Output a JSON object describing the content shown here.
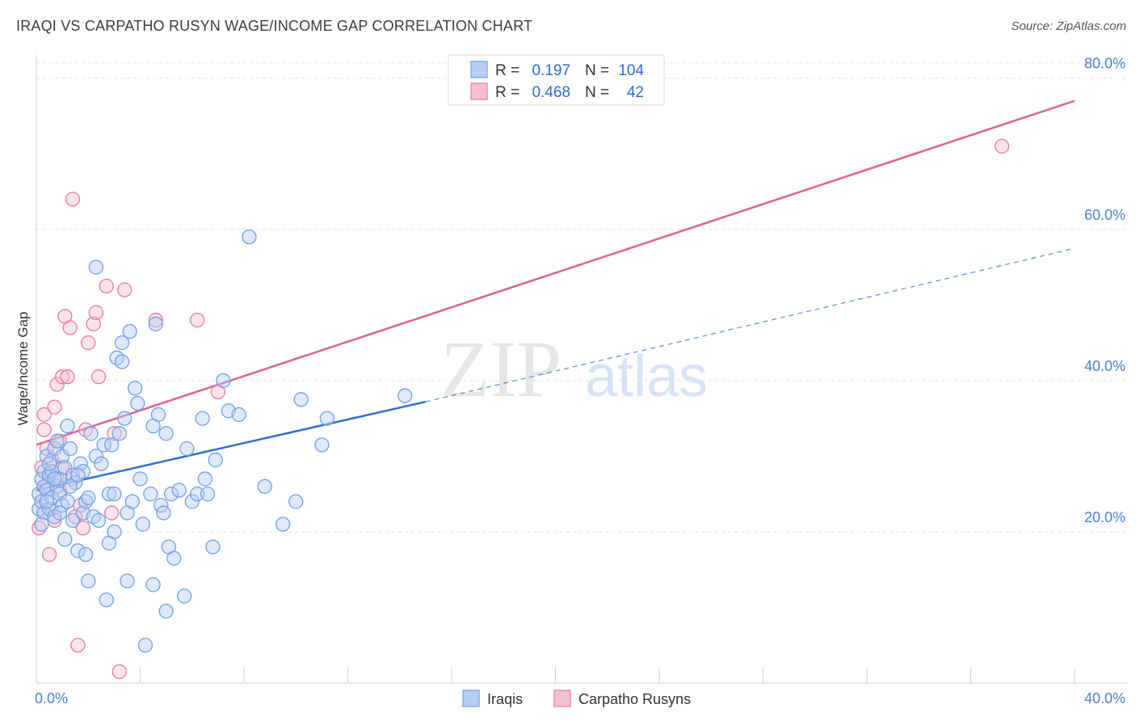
{
  "title": "IRAQI VS CARPATHO RUSYN WAGE/INCOME GAP CORRELATION CHART",
  "source": "Source: ZipAtlas.com",
  "watermark": {
    "zip": "ZIP",
    "atlas": "atlas"
  },
  "chart_data": {
    "type": "scatter",
    "title": "IRAQI VS CARPATHO RUSYN WAGE/INCOME GAP CORRELATION CHART",
    "xlabel": "",
    "ylabel": "Wage/Income Gap",
    "xlim": [
      0,
      40
    ],
    "ylim": [
      0,
      82
    ],
    "x_tick_labels": [
      "0.0%",
      "40.0%"
    ],
    "y_tick_values": [
      20,
      40,
      60,
      80
    ],
    "y_tick_labels": [
      "20.0%",
      "40.0%",
      "60.0%",
      "80.0%"
    ],
    "grid": true,
    "legend_position": "top-center",
    "stats": [
      {
        "name": "Iraqis",
        "r_label": "R =",
        "r": "0.197",
        "n_label": "N =",
        "n": "104",
        "color": "#6fa0e8",
        "fill": "#b7cff5"
      },
      {
        "name": "Carpatho Rusyns",
        "r_label": "R =",
        "r": "0.468",
        "n_label": "N =",
        "n": "42",
        "color": "#e87aa0",
        "fill": "#f7c0d2"
      }
    ],
    "series": [
      {
        "name": "Iraqis",
        "color": "#6fa0e8",
        "trend": {
          "x0": 0,
          "y0": 25.5,
          "x1": 15,
          "y1": 37.2,
          "dash_x1": 40,
          "dash_y1": 57.5,
          "color": "#2f6fd0"
        },
        "points": [
          [
            0.1,
            25
          ],
          [
            0.1,
            23
          ],
          [
            0.2,
            27
          ],
          [
            0.2,
            24
          ],
          [
            0.3,
            26
          ],
          [
            0.3,
            22.5
          ],
          [
            0.3,
            28
          ],
          [
            0.4,
            30
          ],
          [
            0.4,
            25.5
          ],
          [
            0.5,
            23
          ],
          [
            0.5,
            27.5
          ],
          [
            0.6,
            24.5
          ],
          [
            0.6,
            28
          ],
          [
            0.7,
            31
          ],
          [
            0.7,
            22
          ],
          [
            0.8,
            26
          ],
          [
            0.8,
            32
          ],
          [
            0.9,
            27
          ],
          [
            0.9,
            25
          ],
          [
            1.0,
            23.5
          ],
          [
            1.0,
            30
          ],
          [
            1.1,
            28.5
          ],
          [
            1.1,
            19
          ],
          [
            1.2,
            34
          ],
          [
            1.2,
            24
          ],
          [
            1.3,
            31
          ],
          [
            1.4,
            21.5
          ],
          [
            1.4,
            27.5
          ],
          [
            1.5,
            26.5
          ],
          [
            1.6,
            17.5
          ],
          [
            1.7,
            29
          ],
          [
            1.8,
            22.5
          ],
          [
            1.8,
            28
          ],
          [
            1.9,
            24
          ],
          [
            1.9,
            17
          ],
          [
            2.0,
            13.5
          ],
          [
            2.1,
            33
          ],
          [
            2.2,
            22
          ],
          [
            2.3,
            30
          ],
          [
            2.3,
            55
          ],
          [
            2.4,
            21.5
          ],
          [
            2.5,
            29
          ],
          [
            2.6,
            31.5
          ],
          [
            2.7,
            11
          ],
          [
            2.8,
            25
          ],
          [
            2.8,
            18.5
          ],
          [
            2.9,
            31.5
          ],
          [
            3.0,
            20
          ],
          [
            3.0,
            25
          ],
          [
            3.1,
            43
          ],
          [
            3.2,
            33
          ],
          [
            3.3,
            45
          ],
          [
            3.4,
            35
          ],
          [
            3.5,
            22.5
          ],
          [
            3.5,
            13.5
          ],
          [
            3.6,
            46.5
          ],
          [
            3.7,
            24
          ],
          [
            3.8,
            39
          ],
          [
            3.9,
            37
          ],
          [
            4.0,
            27
          ],
          [
            4.1,
            21
          ],
          [
            4.2,
            5
          ],
          [
            4.4,
            25
          ],
          [
            4.5,
            34
          ],
          [
            4.5,
            13
          ],
          [
            4.6,
            47.5
          ],
          [
            4.7,
            35.5
          ],
          [
            4.8,
            23.5
          ],
          [
            4.9,
            22.5
          ],
          [
            5.0,
            9.5
          ],
          [
            5.0,
            33
          ],
          [
            5.1,
            18
          ],
          [
            5.2,
            25
          ],
          [
            5.3,
            16.5
          ],
          [
            5.5,
            25.5
          ],
          [
            5.7,
            11.5
          ],
          [
            5.8,
            31
          ],
          [
            6.0,
            24
          ],
          [
            6.2,
            25
          ],
          [
            6.4,
            35
          ],
          [
            6.5,
            27
          ],
          [
            6.6,
            25
          ],
          [
            6.8,
            18
          ],
          [
            6.9,
            29.5
          ],
          [
            7.2,
            40
          ],
          [
            7.4,
            36
          ],
          [
            7.8,
            35.5
          ],
          [
            8.2,
            59
          ],
          [
            8.8,
            26
          ],
          [
            9.5,
            21
          ],
          [
            10.0,
            24
          ],
          [
            10.2,
            37.5
          ],
          [
            11.0,
            31.5
          ],
          [
            11.2,
            35
          ],
          [
            14.2,
            38
          ],
          [
            1.6,
            27.5
          ],
          [
            0.9,
            22.5
          ],
          [
            1.3,
            26
          ],
          [
            0.5,
            29
          ],
          [
            2.0,
            24.5
          ],
          [
            3.3,
            42.5
          ],
          [
            0.2,
            21
          ],
          [
            0.4,
            24
          ],
          [
            0.7,
            27
          ]
        ]
      },
      {
        "name": "Carpatho Rusyns",
        "color": "#e87aa0",
        "trend": {
          "x0": 0,
          "y0": 31.5,
          "x1": 40,
          "y1": 77,
          "color": "#e06090"
        },
        "points": [
          [
            0.1,
            20.5
          ],
          [
            0.2,
            28.5
          ],
          [
            0.2,
            24
          ],
          [
            0.3,
            35.5
          ],
          [
            0.3,
            33.5
          ],
          [
            0.4,
            26
          ],
          [
            0.4,
            31
          ],
          [
            0.5,
            17
          ],
          [
            0.5,
            27.5
          ],
          [
            0.6,
            29.5
          ],
          [
            0.6,
            23
          ],
          [
            0.7,
            36.5
          ],
          [
            0.7,
            21.5
          ],
          [
            0.8,
            39.5
          ],
          [
            0.8,
            27
          ],
          [
            0.9,
            32
          ],
          [
            0.9,
            25.5
          ],
          [
            1.0,
            40.5
          ],
          [
            1.0,
            28.5
          ],
          [
            1.1,
            48.5
          ],
          [
            1.2,
            40.5
          ],
          [
            1.3,
            47
          ],
          [
            1.4,
            64
          ],
          [
            1.4,
            27
          ],
          [
            1.5,
            22
          ],
          [
            1.6,
            5
          ],
          [
            1.7,
            23.5
          ],
          [
            1.8,
            20.5
          ],
          [
            1.9,
            33.5
          ],
          [
            2.0,
            45
          ],
          [
            2.2,
            47.5
          ],
          [
            2.3,
            49
          ],
          [
            2.4,
            40.5
          ],
          [
            2.7,
            52.5
          ],
          [
            2.9,
            22.5
          ],
          [
            3.0,
            33
          ],
          [
            3.2,
            1.5
          ],
          [
            3.4,
            52
          ],
          [
            4.6,
            48
          ],
          [
            6.2,
            48
          ],
          [
            7.0,
            38.5
          ],
          [
            37.2,
            71
          ]
        ]
      }
    ]
  },
  "bottom_legend": [
    {
      "label": "Iraqis",
      "color": "#6fa0e8",
      "fill": "#b7cff5"
    },
    {
      "label": "Carpatho Rusyns",
      "color": "#e87aa0",
      "fill": "#f7c0d2"
    }
  ]
}
